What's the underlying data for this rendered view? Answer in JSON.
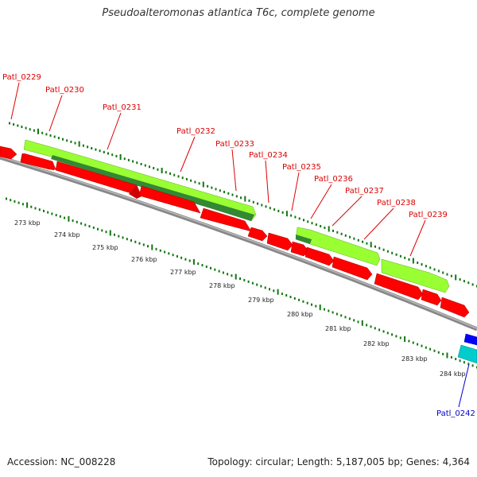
{
  "title": "Pseudoalteromonas atlantica T6c, complete genome",
  "footer": {
    "accession": "Accession: NC_008228",
    "topology": "Topology: circular; Length: 5,187,005 bp; Genes: 4,364"
  },
  "colors": {
    "cds_forward_light": "#99ff33",
    "cds_forward_dark": "#338833",
    "cds_reverse": "#ff0000",
    "backbone": "#888888",
    "label_red": "#dd0000",
    "label_blue": "#0000cc",
    "tick": "#117711",
    "rna_cyan": "#00cccc",
    "rna_blue": "#0000ff"
  },
  "gene_labels": [
    {
      "id": "lbl-0229",
      "text": "Patl_0229"
    },
    {
      "id": "lbl-0230",
      "text": "Patl_0230"
    },
    {
      "id": "lbl-0231",
      "text": "Patl_0231"
    },
    {
      "id": "lbl-0232",
      "text": "Patl_0232"
    },
    {
      "id": "lbl-0233",
      "text": "Patl_0233"
    },
    {
      "id": "lbl-0234",
      "text": "Patl_0234"
    },
    {
      "id": "lbl-0235",
      "text": "Patl_0235"
    },
    {
      "id": "lbl-0236",
      "text": "Patl_0236"
    },
    {
      "id": "lbl-0237",
      "text": "Patl_0237"
    },
    {
      "id": "lbl-0238",
      "text": "Patl_0238"
    },
    {
      "id": "lbl-0239",
      "text": "Patl_0239"
    },
    {
      "id": "lbl-0242",
      "text": "Patl_0242"
    }
  ],
  "kbp_labels": [
    "273 kbp",
    "274 kbp",
    "275 kbp",
    "276 kbp",
    "277 kbp",
    "278 kbp",
    "279 kbp",
    "280 kbp",
    "281 kbp",
    "282 kbp",
    "283 kbp",
    "284 kbp"
  ]
}
